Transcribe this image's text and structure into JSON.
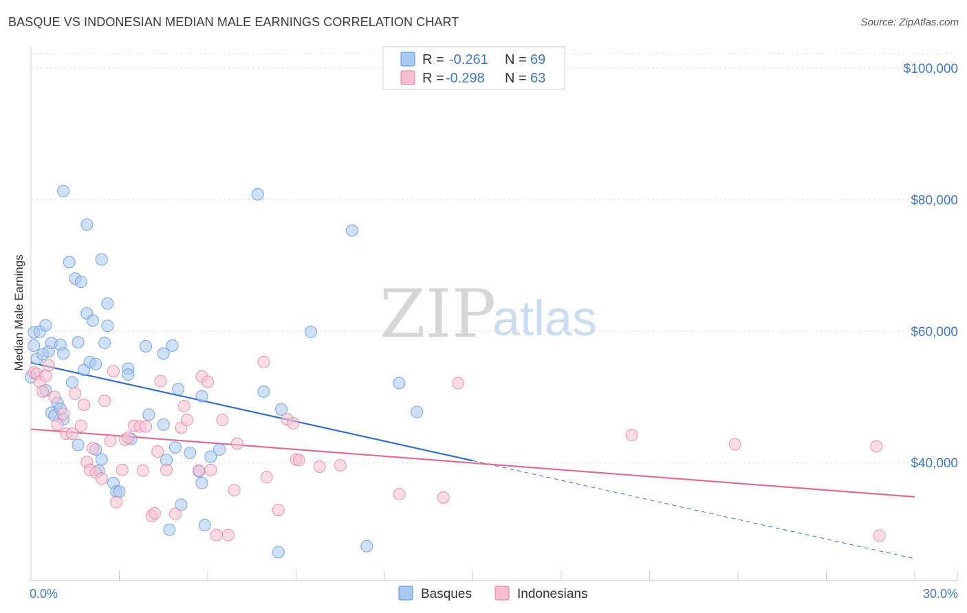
{
  "title": "BASQUE VS INDONESIAN MEDIAN MALE EARNINGS CORRELATION CHART",
  "source": "Source: ZipAtlas.com",
  "watermark": {
    "zip": "ZIP",
    "atlas": "atlas"
  },
  "legend": {
    "rows": [
      {
        "r_label": "R =",
        "r_value": "-0.261",
        "n_label": "N =",
        "n_value": "69",
        "color": "#a9c8f0",
        "stroke": "#5b8ed6"
      },
      {
        "r_label": "R =",
        "r_value": "-0.298",
        "n_label": "N =",
        "n_value": "63",
        "color": "#f6bfd0",
        "stroke": "#e07a9c"
      }
    ]
  },
  "bottom_legend": [
    {
      "label": "Basques",
      "color": "#a9c8f0",
      "stroke": "#5b8ed6"
    },
    {
      "label": "Indonesians",
      "color": "#f6bfd0",
      "stroke": "#e07a9c"
    }
  ],
  "chart_data": {
    "type": "scatter",
    "title": "BASQUE VS INDONESIAN MEDIAN MALE EARNINGS CORRELATION CHART",
    "xlabel": "",
    "ylabel": "Median Male Earnings",
    "xlim": [
      0,
      30
    ],
    "ylim": [
      22000,
      102000
    ],
    "x_tick_labels": [
      {
        "value": 0,
        "label": "0.0%"
      },
      {
        "value": 30,
        "label": "30.0%"
      }
    ],
    "y_tick_labels": [
      {
        "value": 40000,
        "label": "$40,000"
      },
      {
        "value": 60000,
        "label": "$60,000"
      },
      {
        "value": 80000,
        "label": "$80,000"
      },
      {
        "value": 100000,
        "label": "$100,000"
      }
    ],
    "y_gridlines": [
      40000,
      60000,
      80000,
      100000
    ],
    "grid": true,
    "legend_position": "top-center",
    "series": [
      {
        "name": "Basques",
        "color": "#a9c8f0",
        "stroke": "#5b8ed6",
        "trend": {
          "x": [
            0,
            15
          ],
          "y": [
            55200,
            40300
          ],
          "color": "#2f6fd0"
        },
        "trend_ext": {
          "x": [
            15,
            30
          ],
          "y": [
            40300,
            25400
          ]
        },
        "points": [
          [
            0.1,
            59800
          ],
          [
            0.1,
            57800
          ],
          [
            0.2,
            55800
          ],
          [
            0.3,
            59900
          ],
          [
            0.4,
            56500
          ],
          [
            0.5,
            60900
          ],
          [
            0.5,
            51000
          ],
          [
            0.6,
            56900
          ],
          [
            0.7,
            58200
          ],
          [
            0.7,
            47600
          ],
          [
            0.8,
            47200
          ],
          [
            0.9,
            49100
          ],
          [
            1.0,
            48200
          ],
          [
            1.0,
            57900
          ],
          [
            1.1,
            46600
          ],
          [
            1.1,
            56600
          ],
          [
            1.1,
            81300
          ],
          [
            1.3,
            70500
          ],
          [
            1.4,
            52200
          ],
          [
            1.5,
            68000
          ],
          [
            1.6,
            58300
          ],
          [
            1.6,
            42700
          ],
          [
            1.7,
            67500
          ],
          [
            1.8,
            54100
          ],
          [
            1.9,
            76200
          ],
          [
            1.9,
            62700
          ],
          [
            2.0,
            55300
          ],
          [
            2.1,
            61600
          ],
          [
            2.2,
            55000
          ],
          [
            2.2,
            42000
          ],
          [
            2.3,
            38800
          ],
          [
            2.4,
            40500
          ],
          [
            2.4,
            70900
          ],
          [
            2.5,
            58200
          ],
          [
            2.6,
            64200
          ],
          [
            2.6,
            60800
          ],
          [
            2.8,
            36900
          ],
          [
            2.9,
            35600
          ],
          [
            3.0,
            35600
          ],
          [
            3.3,
            54300
          ],
          [
            3.3,
            53400
          ],
          [
            3.4,
            43600
          ],
          [
            3.9,
            57700
          ],
          [
            4.0,
            47300
          ],
          [
            4.5,
            45800
          ],
          [
            4.5,
            56600
          ],
          [
            4.6,
            40400
          ],
          [
            4.7,
            29800
          ],
          [
            4.8,
            57800
          ],
          [
            4.9,
            42300
          ],
          [
            5.0,
            51200
          ],
          [
            5.1,
            33600
          ],
          [
            5.4,
            41500
          ],
          [
            5.7,
            38700
          ],
          [
            5.8,
            36900
          ],
          [
            5.8,
            50100
          ],
          [
            5.9,
            30500
          ],
          [
            6.1,
            40900
          ],
          [
            6.4,
            42000
          ],
          [
            7.7,
            80800
          ],
          [
            7.9,
            50800
          ],
          [
            8.4,
            26400
          ],
          [
            8.5,
            48100
          ],
          [
            9.5,
            59900
          ],
          [
            10.9,
            75300
          ],
          [
            11.4,
            27300
          ],
          [
            12.5,
            52100
          ],
          [
            13.1,
            47700
          ],
          [
            0.0,
            53000
          ]
        ]
      },
      {
        "name": "Indonesians",
        "color": "#f6bfd0",
        "stroke": "#e07a9c",
        "trend": {
          "x": [
            0,
            30
          ],
          "y": [
            45100,
            34800
          ],
          "color": "#e06b93"
        },
        "points": [
          [
            0.1,
            53700
          ],
          [
            0.2,
            53500
          ],
          [
            0.3,
            52300
          ],
          [
            0.4,
            50800
          ],
          [
            0.5,
            53200
          ],
          [
            0.6,
            54800
          ],
          [
            0.8,
            50000
          ],
          [
            0.9,
            45800
          ],
          [
            1.1,
            47400
          ],
          [
            1.2,
            44400
          ],
          [
            1.4,
            44400
          ],
          [
            1.5,
            50500
          ],
          [
            1.7,
            45600
          ],
          [
            1.8,
            48800
          ],
          [
            1.9,
            40100
          ],
          [
            2.0,
            38900
          ],
          [
            2.1,
            42200
          ],
          [
            2.2,
            38500
          ],
          [
            2.4,
            37600
          ],
          [
            2.5,
            49400
          ],
          [
            2.7,
            43300
          ],
          [
            2.8,
            53900
          ],
          [
            2.9,
            34000
          ],
          [
            3.1,
            38900
          ],
          [
            3.2,
            43500
          ],
          [
            3.3,
            43800
          ],
          [
            3.5,
            45600
          ],
          [
            3.7,
            45500
          ],
          [
            3.8,
            38800
          ],
          [
            3.9,
            45500
          ],
          [
            4.1,
            31900
          ],
          [
            4.2,
            32300
          ],
          [
            4.3,
            41700
          ],
          [
            4.4,
            52400
          ],
          [
            4.6,
            38900
          ],
          [
            4.9,
            32200
          ],
          [
            5.1,
            45300
          ],
          [
            5.2,
            48600
          ],
          [
            5.3,
            46500
          ],
          [
            5.7,
            38800
          ],
          [
            5.8,
            53100
          ],
          [
            6.0,
            52300
          ],
          [
            6.1,
            38900
          ],
          [
            6.3,
            29000
          ],
          [
            6.5,
            46500
          ],
          [
            6.7,
            29000
          ],
          [
            6.9,
            35800
          ],
          [
            7.0,
            42900
          ],
          [
            7.9,
            55300
          ],
          [
            8.0,
            37800
          ],
          [
            8.4,
            32800
          ],
          [
            8.7,
            46600
          ],
          [
            8.9,
            46000
          ],
          [
            9.0,
            40500
          ],
          [
            9.1,
            40400
          ],
          [
            9.8,
            39400
          ],
          [
            10.5,
            39600
          ],
          [
            12.5,
            35200
          ],
          [
            14.0,
            34700
          ],
          [
            14.5,
            52100
          ],
          [
            20.4,
            44200
          ],
          [
            23.9,
            42800
          ],
          [
            28.7,
            42500
          ]
        ]
      }
    ],
    "extra_points_indonesians": [
      [
        28.8,
        28900
      ]
    ]
  }
}
